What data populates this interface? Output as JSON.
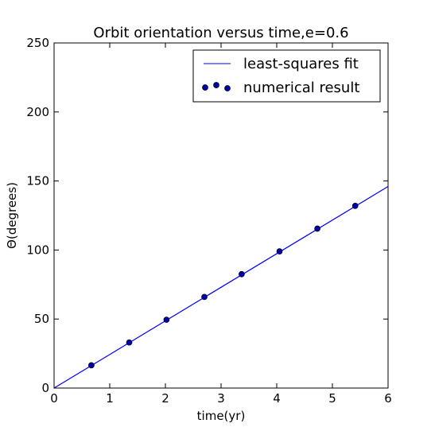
{
  "chart_data": {
    "type": "scatter",
    "title": "Orbit orientation versus time,e=0.6",
    "xlabel": "time(yr)",
    "ylabel": "Θ(degrees)",
    "xlim": [
      0,
      6
    ],
    "ylim": [
      0,
      250
    ],
    "xticks": [
      0,
      1,
      2,
      3,
      4,
      5,
      6
    ],
    "yticks": [
      0,
      50,
      100,
      150,
      200,
      250
    ],
    "xtick_labels": [
      "0",
      "1",
      "2",
      "3",
      "4",
      "5",
      "6"
    ],
    "ytick_labels": [
      "0",
      "50",
      "100",
      "150",
      "200",
      "250"
    ],
    "grid": false,
    "legend_position": "top-right",
    "series": [
      {
        "name": "least-squares fit",
        "kind": "line",
        "color": "#0000ff",
        "x": [
          0,
          6
        ],
        "y": [
          0,
          146
        ]
      },
      {
        "name": "numerical result",
        "kind": "scatter",
        "color": "#0000aa",
        "x": [
          0.67,
          1.35,
          2.02,
          2.7,
          3.37,
          4.05,
          4.73,
          5.41
        ],
        "y": [
          16.5,
          33,
          49.5,
          66,
          82.5,
          99,
          115.5,
          132
        ]
      }
    ]
  }
}
